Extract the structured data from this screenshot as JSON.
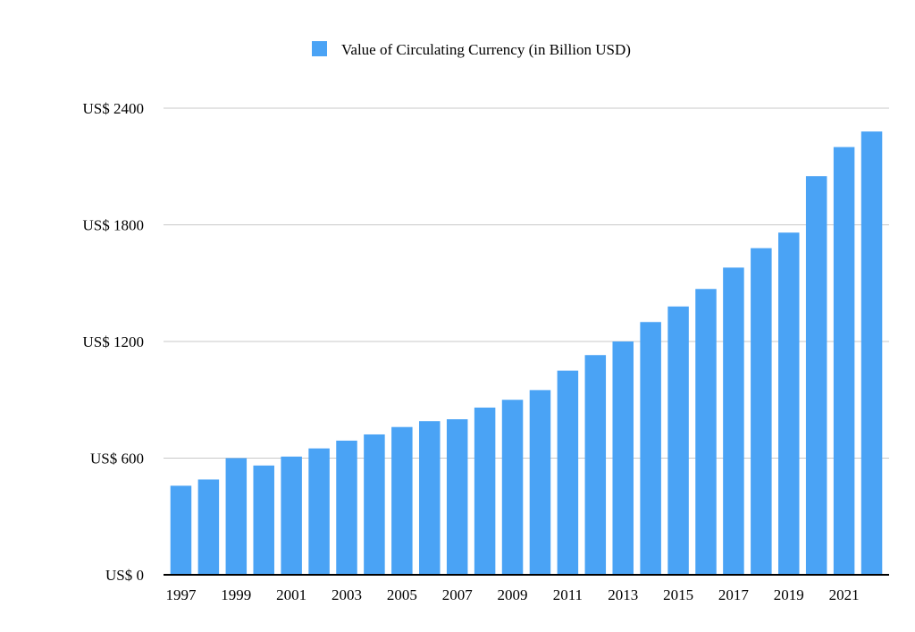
{
  "chart_data": {
    "type": "bar",
    "title": "",
    "xlabel": "",
    "ylabel": "",
    "categories": [
      "1997",
      "1998",
      "1999",
      "2000",
      "2001",
      "2002",
      "2003",
      "2004",
      "2005",
      "2006",
      "2007",
      "2008",
      "2009",
      "2010",
      "2011",
      "2012",
      "2013",
      "2014",
      "2015",
      "2016",
      "2017",
      "2018",
      "2019",
      "2020",
      "2021",
      "2022"
    ],
    "x_tick_labels": [
      "1997",
      "1999",
      "2001",
      "2003",
      "2005",
      "2007",
      "2009",
      "2011",
      "2013",
      "2015",
      "2017",
      "2019",
      "2021"
    ],
    "series": [
      {
        "name": "Value of Circulating Currency (in Billion USD)",
        "color": "#4aa3f5",
        "values": [
          458,
          490,
          600,
          562,
          608,
          650,
          690,
          722,
          760,
          790,
          800,
          860,
          900,
          950,
          1050,
          1130,
          1200,
          1300,
          1380,
          1470,
          1580,
          1680,
          1760,
          2050,
          2200,
          2280
        ]
      }
    ],
    "ylim": [
      0,
      2400
    ],
    "y_ticks": [
      0,
      600,
      1200,
      1800,
      2400
    ],
    "y_tick_labels": [
      "US$ 0",
      "US$ 600",
      "US$ 1200",
      "US$ 1800",
      "US$ 2400"
    ],
    "grid": true,
    "legend_position": "top-center"
  },
  "colors": {
    "bar": "#4aa3f5",
    "grid": "#c9c9c9",
    "axis": "#000000"
  }
}
